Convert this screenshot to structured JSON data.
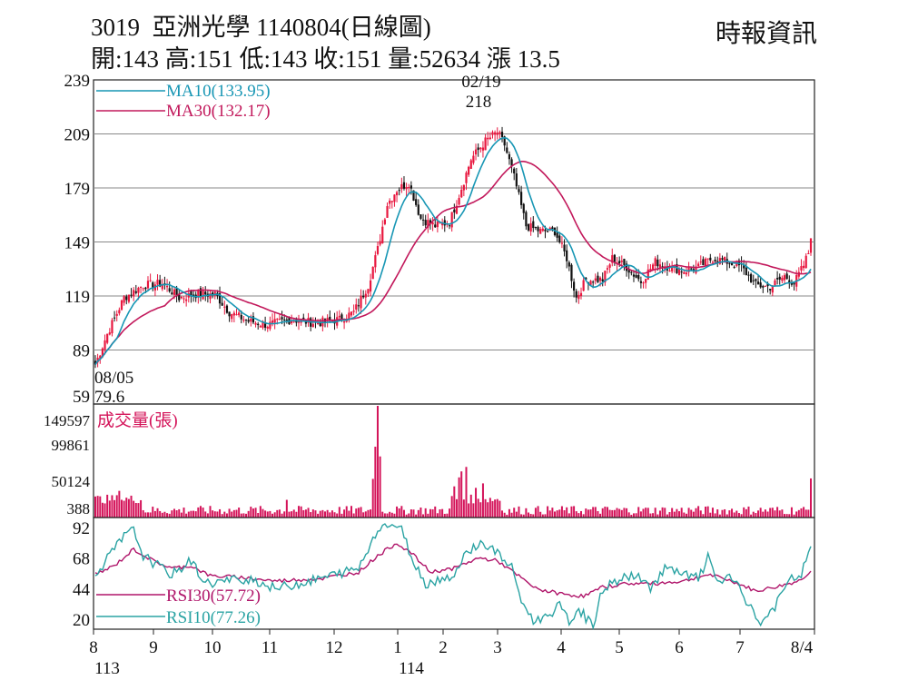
{
  "header": {
    "code": "3019",
    "name": "亞洲光學",
    "date": "1140804(日線圖)",
    "open_label": "開:",
    "open": "143",
    "high_label": "高:",
    "high": "151",
    "low_label": "低:",
    "low": "143",
    "close_label": "收:",
    "close": "151",
    "volume_label": "量:",
    "volume": "52634",
    "change_label": "漲",
    "change": "13.5"
  },
  "source": "時報資訊",
  "colors": {
    "up": "#e8173f",
    "down": "#111111",
    "ma10": "#1796b4",
    "ma30": "#c2185b",
    "volume": "#d4145a",
    "rsi10": "#2aa3a3",
    "rsi30": "#b0156a",
    "grid": "#888888"
  },
  "chart_data": [
    {
      "type": "candlestick",
      "title": "3019 亞洲光學 1140804(日線圖)",
      "y_ticks": [
        "239",
        "209",
        "179",
        "149",
        "119",
        "89",
        "59"
      ],
      "ylim": [
        59,
        239
      ],
      "x_ticks": [
        "8",
        "9",
        "10",
        "11",
        "12",
        "1",
        "2",
        "3",
        "4",
        "5",
        "6",
        "7",
        "8/4"
      ],
      "x_year_labels": [
        "113",
        "114"
      ],
      "legend": [
        {
          "name": "MA10",
          "value": "(133.95)"
        },
        {
          "name": "MA30",
          "value": "(132.17)"
        }
      ],
      "annotations": [
        {
          "date": "02/19",
          "value": "218",
          "note": "high"
        },
        {
          "date": "08/05",
          "value": "79.6",
          "note": "low"
        }
      ],
      "close_anchors": [
        {
          "x": 0,
          "y": 81
        },
        {
          "x": 5,
          "y": 98
        },
        {
          "x": 12,
          "y": 118
        },
        {
          "x": 20,
          "y": 125
        },
        {
          "x": 28,
          "y": 126
        },
        {
          "x": 35,
          "y": 118
        },
        {
          "x": 42,
          "y": 120
        },
        {
          "x": 50,
          "y": 120
        },
        {
          "x": 56,
          "y": 110
        },
        {
          "x": 64,
          "y": 105
        },
        {
          "x": 72,
          "y": 103
        },
        {
          "x": 82,
          "y": 106
        },
        {
          "x": 92,
          "y": 104
        },
        {
          "x": 102,
          "y": 106
        },
        {
          "x": 108,
          "y": 110
        },
        {
          "x": 114,
          "y": 125
        },
        {
          "x": 118,
          "y": 145
        },
        {
          "x": 122,
          "y": 170
        },
        {
          "x": 126,
          "y": 178
        },
        {
          "x": 131,
          "y": 182
        },
        {
          "x": 136,
          "y": 162
        },
        {
          "x": 142,
          "y": 158
        },
        {
          "x": 148,
          "y": 160
        },
        {
          "x": 152,
          "y": 175
        },
        {
          "x": 157,
          "y": 195
        },
        {
          "x": 163,
          "y": 205
        },
        {
          "x": 168,
          "y": 210
        },
        {
          "x": 171,
          "y": 203
        },
        {
          "x": 175,
          "y": 185
        },
        {
          "x": 180,
          "y": 158
        },
        {
          "x": 186,
          "y": 155
        },
        {
          "x": 192,
          "y": 155
        },
        {
          "x": 197,
          "y": 140
        },
        {
          "x": 201,
          "y": 118
        },
        {
          "x": 205,
          "y": 128
        },
        {
          "x": 212,
          "y": 128
        },
        {
          "x": 216,
          "y": 140
        },
        {
          "x": 222,
          "y": 135
        },
        {
          "x": 228,
          "y": 127
        },
        {
          "x": 234,
          "y": 138
        },
        {
          "x": 240,
          "y": 135
        },
        {
          "x": 246,
          "y": 133
        },
        {
          "x": 252,
          "y": 135
        },
        {
          "x": 258,
          "y": 140
        },
        {
          "x": 264,
          "y": 138
        },
        {
          "x": 270,
          "y": 135
        },
        {
          "x": 276,
          "y": 125
        },
        {
          "x": 282,
          "y": 124
        },
        {
          "x": 288,
          "y": 130
        },
        {
          "x": 292,
          "y": 126
        },
        {
          "x": 296,
          "y": 136
        },
        {
          "x": 298,
          "y": 143
        },
        {
          "x": 299,
          "y": 151
        }
      ],
      "ma10_last": 133.95,
      "ma30_last": 132.17
    },
    {
      "type": "bar",
      "title": "成交量(張)",
      "y_ticks": [
        "149597",
        "99861",
        "50124",
        "388"
      ],
      "ylim": [
        388,
        149597
      ],
      "spikes": [
        {
          "x": 10,
          "value": 36000
        },
        {
          "x": 80,
          "value": 24000
        },
        {
          "x": 116,
          "value": 52000
        },
        {
          "x": 117,
          "value": 95000
        },
        {
          "x": 118,
          "value": 149597
        },
        {
          "x": 119,
          "value": 82000
        },
        {
          "x": 150,
          "value": 42000
        },
        {
          "x": 152,
          "value": 54000
        },
        {
          "x": 153,
          "value": 62000
        },
        {
          "x": 155,
          "value": 68000
        },
        {
          "x": 159,
          "value": 40000
        },
        {
          "x": 162,
          "value": 46000
        },
        {
          "x": 299,
          "value": 52634
        }
      ]
    },
    {
      "type": "line",
      "title": "RSI",
      "y_ticks": [
        "92",
        "68",
        "44",
        "20"
      ],
      "ylim": [
        12,
        100
      ],
      "legend": [
        {
          "name": "RSI30",
          "value": "(57.72)"
        },
        {
          "name": "RSI10",
          "value": "(77.26)"
        }
      ],
      "rsi10_anchors": [
        {
          "x": 0,
          "y": 55
        },
        {
          "x": 6,
          "y": 70
        },
        {
          "x": 12,
          "y": 85
        },
        {
          "x": 16,
          "y": 90
        },
        {
          "x": 20,
          "y": 70
        },
        {
          "x": 26,
          "y": 62
        },
        {
          "x": 32,
          "y": 55
        },
        {
          "x": 40,
          "y": 66
        },
        {
          "x": 46,
          "y": 48
        },
        {
          "x": 55,
          "y": 50
        },
        {
          "x": 65,
          "y": 52
        },
        {
          "x": 75,
          "y": 44
        },
        {
          "x": 90,
          "y": 50
        },
        {
          "x": 100,
          "y": 55
        },
        {
          "x": 110,
          "y": 60
        },
        {
          "x": 114,
          "y": 75
        },
        {
          "x": 118,
          "y": 92
        },
        {
          "x": 124,
          "y": 95
        },
        {
          "x": 128,
          "y": 90
        },
        {
          "x": 133,
          "y": 65
        },
        {
          "x": 138,
          "y": 48
        },
        {
          "x": 145,
          "y": 52
        },
        {
          "x": 150,
          "y": 55
        },
        {
          "x": 156,
          "y": 75
        },
        {
          "x": 162,
          "y": 80
        },
        {
          "x": 168,
          "y": 72
        },
        {
          "x": 174,
          "y": 60
        },
        {
          "x": 178,
          "y": 35
        },
        {
          "x": 183,
          "y": 18
        },
        {
          "x": 188,
          "y": 22
        },
        {
          "x": 194,
          "y": 30
        },
        {
          "x": 198,
          "y": 18
        },
        {
          "x": 202,
          "y": 28
        },
        {
          "x": 208,
          "y": 14
        },
        {
          "x": 212,
          "y": 44
        },
        {
          "x": 218,
          "y": 50
        },
        {
          "x": 225,
          "y": 55
        },
        {
          "x": 232,
          "y": 45
        },
        {
          "x": 238,
          "y": 60
        },
        {
          "x": 245,
          "y": 55
        },
        {
          "x": 252,
          "y": 52
        },
        {
          "x": 256,
          "y": 68
        },
        {
          "x": 260,
          "y": 50
        },
        {
          "x": 266,
          "y": 52
        },
        {
          "x": 272,
          "y": 35
        },
        {
          "x": 278,
          "y": 16
        },
        {
          "x": 284,
          "y": 30
        },
        {
          "x": 290,
          "y": 50
        },
        {
          "x": 295,
          "y": 55
        },
        {
          "x": 299,
          "y": 77.26
        }
      ],
      "rsi30_anchors": [
        {
          "x": 0,
          "y": 55
        },
        {
          "x": 8,
          "y": 62
        },
        {
          "x": 16,
          "y": 75
        },
        {
          "x": 24,
          "y": 66
        },
        {
          "x": 32,
          "y": 60
        },
        {
          "x": 40,
          "y": 62
        },
        {
          "x": 48,
          "y": 54
        },
        {
          "x": 60,
          "y": 53
        },
        {
          "x": 75,
          "y": 50
        },
        {
          "x": 95,
          "y": 52
        },
        {
          "x": 110,
          "y": 57
        },
        {
          "x": 118,
          "y": 70
        },
        {
          "x": 126,
          "y": 80
        },
        {
          "x": 132,
          "y": 72
        },
        {
          "x": 140,
          "y": 57
        },
        {
          "x": 150,
          "y": 60
        },
        {
          "x": 160,
          "y": 68
        },
        {
          "x": 168,
          "y": 66
        },
        {
          "x": 176,
          "y": 55
        },
        {
          "x": 184,
          "y": 44
        },
        {
          "x": 194,
          "y": 40
        },
        {
          "x": 204,
          "y": 38
        },
        {
          "x": 212,
          "y": 45
        },
        {
          "x": 222,
          "y": 48
        },
        {
          "x": 234,
          "y": 48
        },
        {
          "x": 246,
          "y": 50
        },
        {
          "x": 256,
          "y": 55
        },
        {
          "x": 266,
          "y": 50
        },
        {
          "x": 276,
          "y": 42
        },
        {
          "x": 286,
          "y": 46
        },
        {
          "x": 294,
          "y": 50
        },
        {
          "x": 299,
          "y": 57.72
        }
      ]
    }
  ]
}
